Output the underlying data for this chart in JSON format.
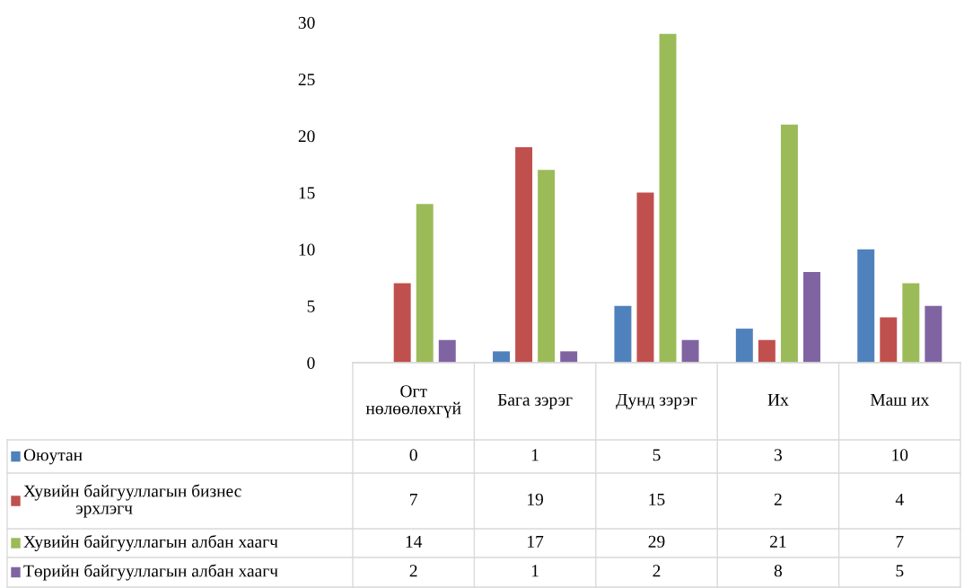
{
  "chart_data": {
    "type": "bar",
    "categories": [
      "Огт нөлөөлөхгүй",
      "Бага зэрэг",
      "Дунд зэрэг",
      "Их",
      "Маш их"
    ],
    "series": [
      {
        "name": "Оюутан",
        "color": "#4f81bd",
        "values": [
          0,
          1,
          5,
          3,
          10
        ]
      },
      {
        "name": "Хувийн байгууллагын бизнес эрхлэгч",
        "color": "#c0504d",
        "values": [
          7,
          19,
          15,
          2,
          4
        ]
      },
      {
        "name": "Хувийн байгууллагын албан хаагч",
        "color": "#9bbb59",
        "values": [
          14,
          17,
          29,
          21,
          7
        ]
      },
      {
        "name": "Төрийн байгууллагын албан хаагч",
        "color": "#8064a2",
        "values": [
          2,
          1,
          2,
          8,
          5
        ]
      }
    ],
    "ylim": [
      0,
      30
    ],
    "yticks": [
      0,
      5,
      10,
      15,
      20,
      25,
      30
    ],
    "data_labels": true,
    "legend": "bottom",
    "grid": false
  }
}
